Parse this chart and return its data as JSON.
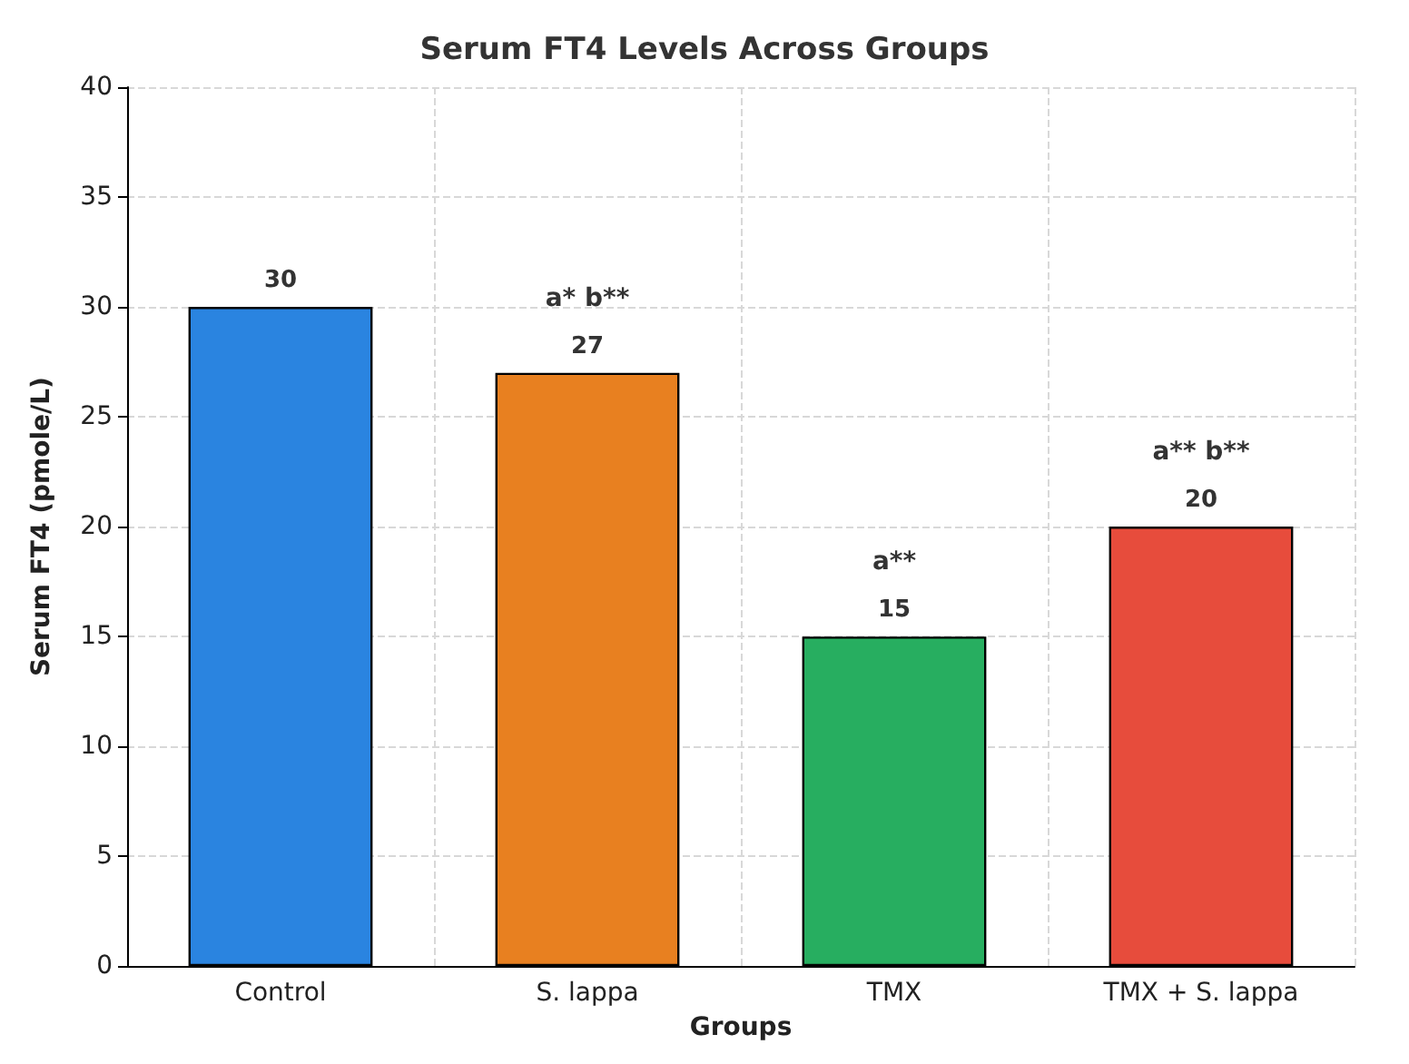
{
  "chart_data": {
    "type": "bar",
    "title": "Serum FT4 Levels Across Groups",
    "xlabel": "Groups",
    "ylabel": "Serum FT4 (pmole/L)",
    "categories": [
      "Control",
      "S. lappa",
      "TMX",
      "TMX + S. lappa"
    ],
    "values": [
      30,
      27,
      15,
      20
    ],
    "colors": [
      "#2a84e0",
      "#e88020",
      "#27ae60",
      "#e74c3c"
    ],
    "data_labels": true,
    "annotations": [
      {
        "text": "a* b**",
        "x": "S. lappa",
        "y": 27
      },
      {
        "text": "a**",
        "x": "TMX",
        "y": 15
      },
      {
        "text": "a** b**",
        "x": "TMX + S. lappa",
        "y": 20
      }
    ],
    "ylim": [
      0,
      40
    ],
    "yticks": [
      0,
      5,
      10,
      15,
      20,
      25,
      30,
      35,
      40
    ],
    "grid": true
  }
}
